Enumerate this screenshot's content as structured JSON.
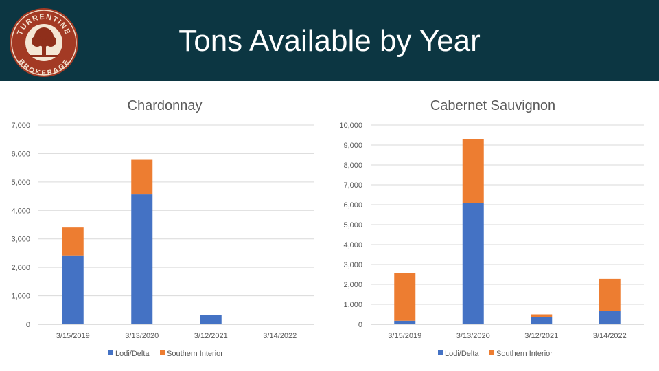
{
  "header": {
    "title": "Tons Available by Year",
    "logo_text_top": "TURRENTINE",
    "logo_text_bottom": "BROKERAGE"
  },
  "colors": {
    "header_bg": "#0c3642",
    "series_lodi": "#4472c4",
    "series_southern": "#ed7d31",
    "grid": "#d9d9d9",
    "axis_text": "#595959"
  },
  "chart_data": [
    {
      "type": "bar",
      "stacked": true,
      "title": "Chardonnay",
      "categories": [
        "3/15/2019",
        "3/13/2020",
        "3/12/2021",
        "3/14/2022"
      ],
      "series": [
        {
          "name": "Lodi/Delta",
          "values": [
            2420,
            4560,
            320,
            0
          ]
        },
        {
          "name": "Southern Interior",
          "values": [
            980,
            1220,
            0,
            0
          ]
        }
      ],
      "ylim": [
        0,
        7000
      ],
      "yticks": [
        "0",
        "1,000",
        "2,000",
        "3,000",
        "4,000",
        "5,000",
        "6,000",
        "7,000"
      ],
      "legend": "bottom"
    },
    {
      "type": "bar",
      "stacked": true,
      "title": "Cabernet Sauvignon",
      "categories": [
        "3/15/2019",
        "3/13/2020",
        "3/12/2021",
        "3/14/2022"
      ],
      "series": [
        {
          "name": "Lodi/Delta",
          "values": [
            180,
            6100,
            380,
            660
          ]
        },
        {
          "name": "Southern Interior",
          "values": [
            2380,
            3200,
            120,
            1620
          ]
        }
      ],
      "ylim": [
        0,
        10000
      ],
      "yticks": [
        "0",
        "1,000",
        "2,000",
        "3,000",
        "4,000",
        "5,000",
        "6,000",
        "7,000",
        "8,000",
        "9,000",
        "10,000"
      ],
      "legend": "bottom"
    }
  ]
}
